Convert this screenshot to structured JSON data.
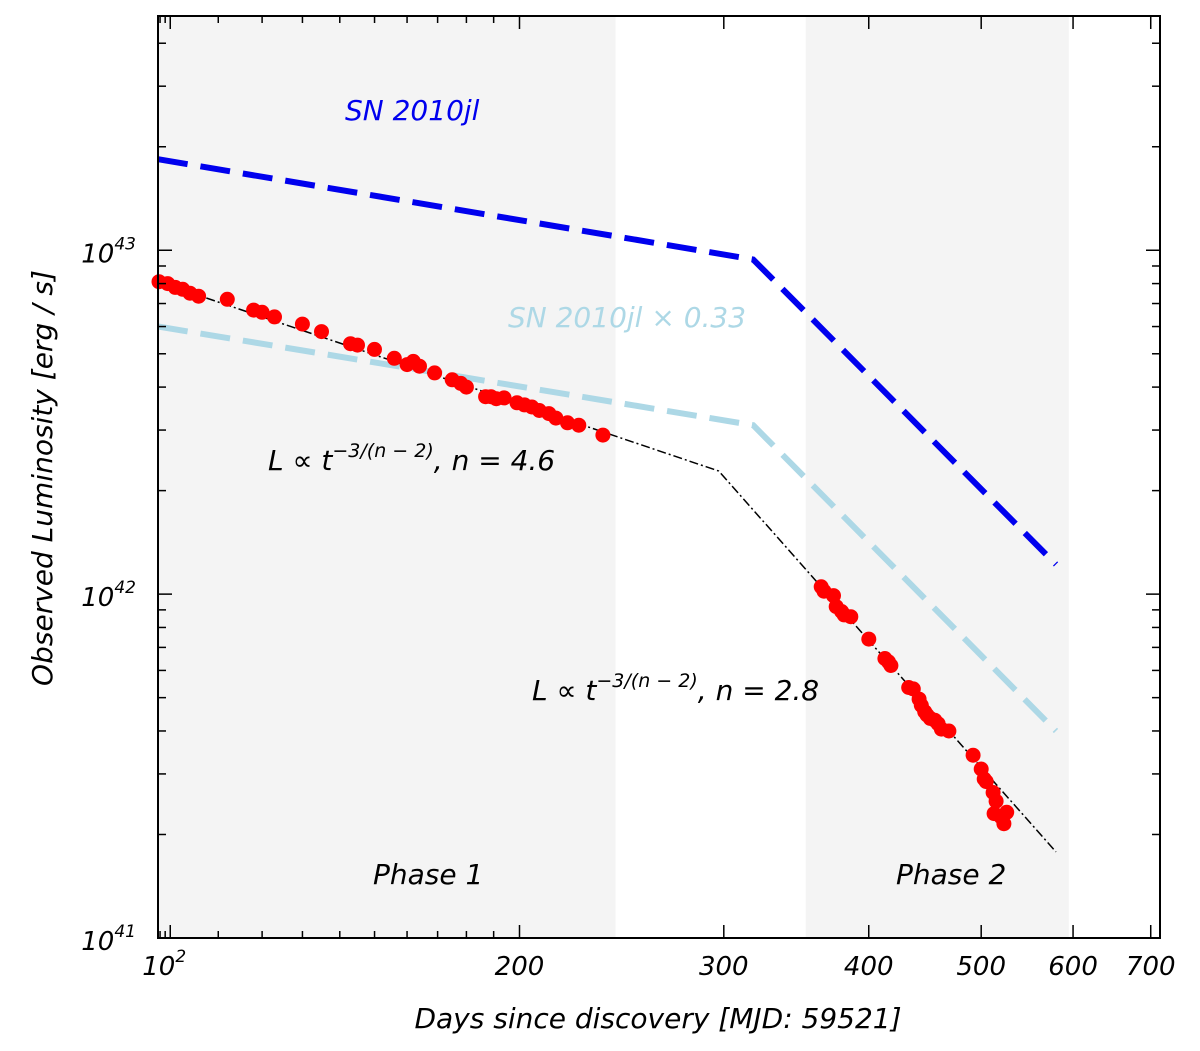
{
  "chart_data": {
    "type": "scatter",
    "title": "",
    "xlabel": "Days since discovery [MJD: 59521]",
    "ylabel": "Observed Luminosity [erg / s]",
    "xscale": "log",
    "yscale": "log",
    "xlim": [
      97.6,
      713
    ],
    "ylim": [
      1e+41,
      4.8e+43
    ],
    "x_ticks": [
      {
        "value": 100,
        "label": "10",
        "sup": "2"
      },
      {
        "value": 200,
        "label": "200",
        "sup": ""
      },
      {
        "value": 300,
        "label": "300",
        "sup": ""
      },
      {
        "value": 400,
        "label": "400",
        "sup": ""
      },
      {
        "value": 500,
        "label": "500",
        "sup": ""
      },
      {
        "value": 600,
        "label": "600",
        "sup": ""
      },
      {
        "value": 700,
        "label": "700",
        "sup": ""
      }
    ],
    "y_ticks": [
      {
        "value": 1e+41,
        "label": "10",
        "sup": "41"
      },
      {
        "value": 1e+42,
        "label": "10",
        "sup": "42"
      },
      {
        "value": 1e+43,
        "label": "10",
        "sup": "43"
      }
    ],
    "shaded_regions": [
      {
        "name": "Phase 1",
        "x0": 97.6,
        "x1": 242
      },
      {
        "name": "Phase 2",
        "x0": 353,
        "x1": 595
      }
    ],
    "colors": {
      "data_points": "#ff0000",
      "sn2010jl": "#0000ee",
      "sn2010jl_scaled": "#add8e6",
      "fit": "#000000",
      "phase_shade": "#f4f4f4"
    },
    "series": [
      {
        "name": "SN 2010jl",
        "kind": "dashed-line",
        "points": [
          [
            97.6,
            1.84e+43
          ],
          [
            318,
            9.4e+42
          ],
          [
            580,
            1.22e+42
          ]
        ]
      },
      {
        "name": "SN 2010jl × 0.33",
        "kind": "dashed-line",
        "points": [
          [
            97.6,
            6e+42
          ],
          [
            318,
            3.1e+42
          ],
          [
            580,
            4e+41
          ]
        ]
      },
      {
        "name": "power-law fit",
        "kind": "dashdot-line",
        "points": [
          [
            97.6,
            8.1e+42
          ],
          [
            297,
            2.28e+42
          ],
          [
            580,
            1.78e+41
          ]
        ]
      },
      {
        "name": "observed",
        "kind": "points",
        "points": [
          [
            97.8,
            8.1e+42
          ],
          [
            99.5,
            8e+42
          ],
          [
            101,
            7.8e+42
          ],
          [
            102.5,
            7.7e+42
          ],
          [
            104,
            7.5e+42
          ],
          [
            105.8,
            7.35e+42
          ],
          [
            112,
            7.2e+42
          ],
          [
            118,
            6.7e+42
          ],
          [
            120,
            6.6e+42
          ],
          [
            123,
            6.4e+42
          ],
          [
            130,
            6.1e+42
          ],
          [
            135,
            5.8e+42
          ],
          [
            143,
            5.35e+42
          ],
          [
            145,
            5.3e+42
          ],
          [
            150,
            5.15e+42
          ],
          [
            156,
            4.85e+42
          ],
          [
            160,
            4.65e+42
          ],
          [
            162,
            4.75e+42
          ],
          [
            164,
            4.6e+42
          ],
          [
            169,
            4.4e+42
          ],
          [
            175,
            4.2e+42
          ],
          [
            178,
            4.1e+42
          ],
          [
            180,
            4e+42
          ],
          [
            187,
            3.75e+42
          ],
          [
            189,
            3.75e+42
          ],
          [
            191,
            3.7e+42
          ],
          [
            194,
            3.72e+42
          ],
          [
            199,
            3.6e+42
          ],
          [
            202,
            3.55e+42
          ],
          [
            205,
            3.5e+42
          ],
          [
            208,
            3.42e+42
          ],
          [
            212,
            3.35e+42
          ],
          [
            215,
            3.25e+42
          ],
          [
            220,
            3.15e+42
          ],
          [
            225,
            3.1e+42
          ],
          [
            236,
            2.9e+42
          ],
          [
            364,
            1.05e+42
          ],
          [
            366,
            1.02e+42
          ],
          [
            373,
            9.9e+41
          ],
          [
            375,
            9.2e+41
          ],
          [
            379,
            8.9e+41
          ],
          [
            381,
            8.7e+41
          ],
          [
            386,
            8.6e+41
          ],
          [
            400,
            7.4e+41
          ],
          [
            413,
            6.5e+41
          ],
          [
            416,
            6.35e+41
          ],
          [
            418,
            6.2e+41
          ],
          [
            433,
            5.35e+41
          ],
          [
            437,
            5.3e+41
          ],
          [
            442,
            4.95e+41
          ],
          [
            444,
            4.75e+41
          ],
          [
            447,
            4.55e+41
          ],
          [
            449,
            4.45e+41
          ],
          [
            452,
            4.35e+41
          ],
          [
            456,
            4.3e+41
          ],
          [
            459,
            4.2e+41
          ],
          [
            462,
            4.05e+41
          ],
          [
            469,
            4e+41
          ],
          [
            492,
            3.4e+41
          ],
          [
            500,
            3.1e+41
          ],
          [
            503,
            2.9e+41
          ],
          [
            505,
            2.85e+41
          ],
          [
            512,
            2.65e+41
          ],
          [
            515,
            2.5e+41
          ],
          [
            513,
            2.3e+41
          ],
          [
            520,
            2.25e+41
          ],
          [
            526,
            2.32e+41
          ],
          [
            523,
            2.15e+41
          ]
        ]
      }
    ],
    "annotations": {
      "sn2010jl": "SN 2010jl",
      "sn2010jl_scaled": "SN 2010jl × 0.33",
      "fit1_prefix": "L ∝ t",
      "fit1_exp": "−3/(n − 2)",
      "fit1_suffix": ", n = 4.6",
      "fit2_prefix": "L ∝ t",
      "fit2_exp": "−3/(n − 2)",
      "fit2_suffix": ", n = 2.8",
      "phase1": "Phase 1",
      "phase2": "Phase 2"
    }
  }
}
